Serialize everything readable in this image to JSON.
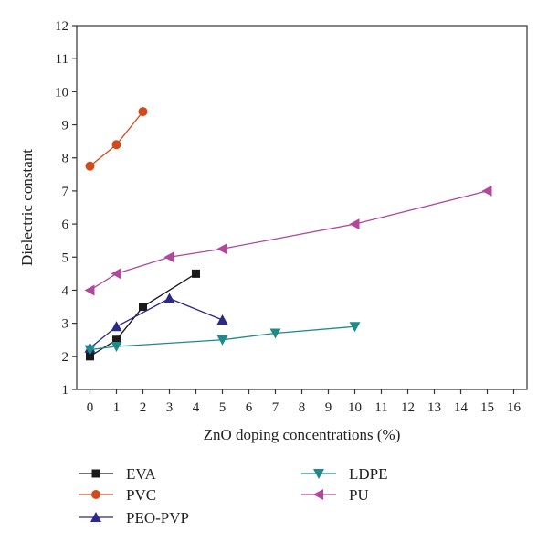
{
  "chart_data": {
    "type": "line",
    "title": "",
    "xlabel": "ZnO doping concentrations (%)",
    "ylabel": "Dielectric constant",
    "xlim": [
      -0.5,
      16.5
    ],
    "ylim": [
      1,
      12
    ],
    "xticks": [
      0,
      1,
      2,
      3,
      4,
      5,
      6,
      7,
      8,
      9,
      10,
      11,
      12,
      13,
      14,
      15,
      16
    ],
    "yticks": [
      1,
      2,
      3,
      4,
      5,
      6,
      7,
      8,
      9,
      10,
      11,
      12
    ],
    "grid": false,
    "legend_position": "bottom",
    "series": [
      {
        "name": "EVA",
        "color": "#1a1a1a",
        "marker": "square",
        "x": [
          0,
          1,
          2,
          4
        ],
        "y": [
          2.0,
          2.5,
          3.5,
          4.5
        ]
      },
      {
        "name": "PVC",
        "color": "#d04a1e",
        "marker": "circle",
        "x": [
          0,
          1,
          2
        ],
        "y": [
          7.75,
          8.4,
          9.4
        ]
      },
      {
        "name": "PEO-PVP",
        "color": "#2a2a88",
        "marker": "triangle-up",
        "x": [
          0,
          1,
          3,
          5
        ],
        "y": [
          2.25,
          2.9,
          3.75,
          3.1
        ]
      },
      {
        "name": "LDPE",
        "color": "#1e8a8a",
        "marker": "triangle-down",
        "x": [
          0,
          1,
          5,
          7,
          10
        ],
        "y": [
          2.2,
          2.3,
          2.5,
          2.7,
          2.9
        ]
      },
      {
        "name": "PU",
        "color": "#b2479c",
        "marker": "triangle-left",
        "x": [
          0,
          1,
          3,
          5,
          10,
          15
        ],
        "y": [
          4.0,
          4.5,
          5.0,
          5.25,
          6.0,
          7.0
        ]
      }
    ]
  }
}
